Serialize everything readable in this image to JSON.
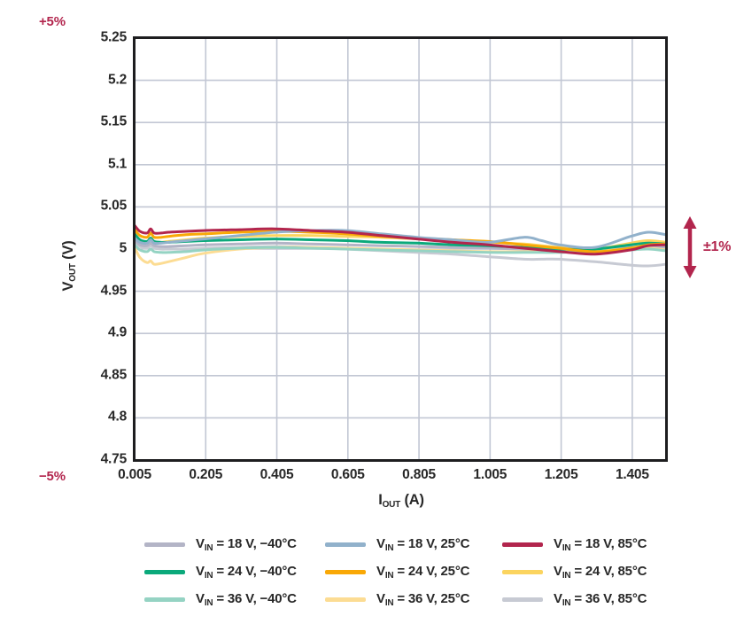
{
  "annotations": {
    "plus5": "+5%",
    "minus5": "−5%",
    "pm1": "±1%"
  },
  "colors": {
    "accent": "#b2254d",
    "grid": "#c2c7d4",
    "frame": "#1d1d1f",
    "text": "#282828",
    "background": "#ffffff"
  },
  "chart_data": {
    "type": "line",
    "title": "",
    "xlabel_parts": {
      "pre": "I",
      "sub": "OUT",
      "post": " (A)"
    },
    "ylabel_parts": {
      "pre": "V",
      "sub": "OUT",
      "post": " (V)"
    },
    "xlim": [
      0.005,
      1.5
    ],
    "ylim": [
      4.75,
      5.25
    ],
    "grid": true,
    "legend_position": "bottom",
    "xticks": [
      {
        "v": 0.005,
        "label": "0.005"
      },
      {
        "v": 0.205,
        "label": "0.205"
      },
      {
        "v": 0.405,
        "label": "0.405"
      },
      {
        "v": 0.605,
        "label": "0.605"
      },
      {
        "v": 0.805,
        "label": "0.805"
      },
      {
        "v": 1.005,
        "label": "1.005"
      },
      {
        "v": 1.205,
        "label": "1.205"
      },
      {
        "v": 1.405,
        "label": "1.405"
      }
    ],
    "yticks": [
      {
        "v": 5.25,
        "label": "5.25"
      },
      {
        "v": 5.2,
        "label": "5.2"
      },
      {
        "v": 5.15,
        "label": "5.15"
      },
      {
        "v": 5.1,
        "label": "5.1"
      },
      {
        "v": 5.05,
        "label": "5.05"
      },
      {
        "v": 5.0,
        "label": "5"
      },
      {
        "v": 4.95,
        "label": "4.95"
      },
      {
        "v": 4.9,
        "label": "4.9"
      },
      {
        "v": 4.85,
        "label": "4.85"
      },
      {
        "v": 4.8,
        "label": "4.8"
      },
      {
        "v": 4.75,
        "label": "4.75"
      }
    ],
    "xgrid": [
      0.205,
      0.405,
      0.605,
      0.805,
      1.005,
      1.205,
      1.405
    ],
    "ygrid": [
      5.2,
      5.15,
      5.1,
      5.05,
      5.0,
      4.95,
      4.9,
      4.85,
      4.8
    ],
    "x": [
      0.005,
      0.02,
      0.04,
      0.05,
      0.06,
      0.08,
      0.1,
      0.15,
      0.2,
      0.3,
      0.4,
      0.5,
      0.6,
      0.7,
      0.8,
      0.9,
      1.0,
      1.1,
      1.15,
      1.2,
      1.3,
      1.4,
      1.45,
      1.5
    ],
    "series": [
      {
        "id": "vin36-85c",
        "color": "#c7cad3",
        "y": [
          5.008,
          5.003,
          5.001,
          5.004,
          5.001,
          5.0,
          5.0,
          5.0,
          5.001,
          5.002,
          5.003,
          5.002,
          5.0,
          4.998,
          4.996,
          4.994,
          4.991,
          4.988,
          4.988,
          4.988,
          4.985,
          4.981,
          4.98,
          4.982
        ]
      },
      {
        "id": "vin18-neg40c",
        "color": "#b3b4c6",
        "y": [
          5.01,
          5.005,
          5.004,
          5.007,
          5.004,
          5.003,
          5.003,
          5.004,
          5.005,
          5.006,
          5.007,
          5.006,
          5.005,
          5.004,
          5.003,
          5.002,
          5.001,
          5.0,
          5.0,
          4.999,
          4.999,
          5.002,
          5.003,
          5.002
        ]
      },
      {
        "id": "vin36-25c",
        "color": "#fcdc93",
        "y": [
          5.002,
          4.99,
          4.984,
          4.986,
          4.982,
          4.983,
          4.985,
          4.99,
          4.995,
          5.0,
          5.002,
          5.002,
          5.001,
          5.0,
          4.999,
          4.998,
          4.997,
          4.997,
          4.997,
          4.997,
          4.998,
          5.0,
          5.001,
          4.999
        ]
      },
      {
        "id": "vin36-neg40c",
        "color": "#95d3c3",
        "y": [
          5.005,
          4.999,
          4.997,
          5.0,
          4.997,
          4.996,
          4.996,
          4.997,
          4.999,
          5.001,
          5.002,
          5.001,
          5.0,
          4.999,
          4.998,
          4.997,
          4.996,
          4.996,
          4.996,
          4.996,
          4.997,
          4.999,
          5.0,
          4.998
        ]
      },
      {
        "id": "vin24-85c",
        "color": "#fbd45f",
        "y": [
          5.013,
          5.009,
          5.008,
          5.011,
          5.008,
          5.008,
          5.009,
          5.011,
          5.013,
          5.015,
          5.016,
          5.016,
          5.015,
          5.014,
          5.012,
          5.01,
          5.008,
          5.006,
          5.004,
          5.002,
          5.0,
          5.007,
          5.01,
          5.008
        ]
      },
      {
        "id": "vin24-neg40c",
        "color": "#0ba97b",
        "y": [
          5.018,
          5.011,
          5.009,
          5.013,
          5.009,
          5.008,
          5.008,
          5.009,
          5.01,
          5.011,
          5.012,
          5.011,
          5.01,
          5.008,
          5.007,
          5.005,
          5.004,
          5.002,
          5.001,
          5.0,
          5.0,
          5.005,
          5.007,
          5.006
        ]
      },
      {
        "id": "vin24-25c",
        "color": "#f9a806",
        "y": [
          5.023,
          5.016,
          5.014,
          5.019,
          5.014,
          5.014,
          5.015,
          5.017,
          5.018,
          5.02,
          5.021,
          5.02,
          5.018,
          5.015,
          5.013,
          5.011,
          5.009,
          5.005,
          5.003,
          5.001,
          4.997,
          5.001,
          5.005,
          5.006
        ]
      },
      {
        "id": "vin18-25c",
        "color": "#91b1cb",
        "y": [
          5.013,
          5.008,
          5.007,
          5.011,
          5.007,
          5.007,
          5.008,
          5.01,
          5.012,
          5.016,
          5.02,
          5.022,
          5.022,
          5.018,
          5.014,
          5.011,
          5.008,
          5.014,
          5.01,
          5.005,
          5.002,
          5.015,
          5.02,
          5.017
        ]
      },
      {
        "id": "vin18-85c",
        "color": "#b2254d",
        "y": [
          5.028,
          5.021,
          5.019,
          5.024,
          5.019,
          5.019,
          5.02,
          5.021,
          5.022,
          5.023,
          5.024,
          5.022,
          5.02,
          5.016,
          5.012,
          5.008,
          5.005,
          5.001,
          4.999,
          4.997,
          4.994,
          4.999,
          5.004,
          5.005
        ]
      }
    ]
  },
  "legend": {
    "items": [
      {
        "pre": "V",
        "sub": "IN",
        "post": " = 18 V, −40°C",
        "color": "#b3b4c6",
        "series_id": "vin18-neg40c"
      },
      {
        "pre": "V",
        "sub": "IN",
        "post": " = 18 V, 25°C",
        "color": "#91b1cb",
        "series_id": "vin18-25c"
      },
      {
        "pre": "V",
        "sub": "IN",
        "post": " = 18 V, 85°C",
        "color": "#b2254d",
        "series_id": "vin18-85c"
      },
      {
        "pre": "V",
        "sub": "IN",
        "post": " = 24 V, −40°C",
        "color": "#0ba97b",
        "series_id": "vin24-neg40c"
      },
      {
        "pre": "V",
        "sub": "IN",
        "post": " = 24 V, 25°C",
        "color": "#f9a806",
        "series_id": "vin24-25c"
      },
      {
        "pre": "V",
        "sub": "IN",
        "post": " = 24 V, 85°C",
        "color": "#fbd45f",
        "series_id": "vin24-85c"
      },
      {
        "pre": "V",
        "sub": "IN",
        "post": " = 36 V, −40°C",
        "color": "#95d3c3",
        "series_id": "vin36-neg40c"
      },
      {
        "pre": "V",
        "sub": "IN",
        "post": " = 36 V, 25°C",
        "color": "#fcdc93",
        "series_id": "vin36-25c"
      },
      {
        "pre": "V",
        "sub": "IN",
        "post": " = 36 V, 85°C",
        "color": "#c7cad3",
        "series_id": "vin36-85c"
      }
    ]
  }
}
